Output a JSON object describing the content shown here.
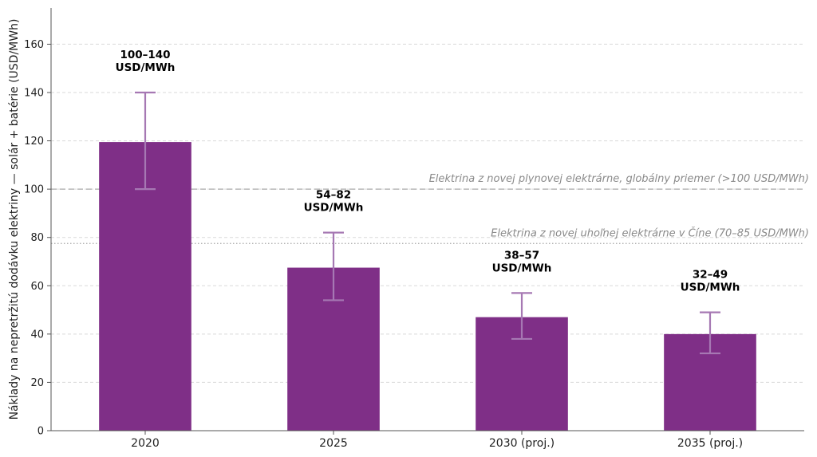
{
  "chart_data": {
    "type": "bar",
    "title": "",
    "xlabel": "",
    "ylabel": "Náklady na nepretržitú dodávku elektriny — solár + batérie (USD/MWh)",
    "ylim": [
      0,
      175
    ],
    "yticks": [
      0,
      20,
      40,
      60,
      80,
      100,
      120,
      140,
      160
    ],
    "grid": "horizontal dashed",
    "categories": [
      "2020",
      "2025",
      "2030 (proj.)",
      "2035 (proj.)"
    ],
    "values": [
      119.5,
      67.5,
      47,
      40
    ],
    "error_low": [
      100,
      54,
      38,
      32
    ],
    "error_high": [
      140,
      82,
      57,
      49
    ],
    "bar_labels": [
      [
        "100–140",
        "USD/MWh"
      ],
      [
        "54–82",
        "USD/MWh"
      ],
      [
        "38–57",
        "USD/MWh"
      ],
      [
        "32–49",
        "USD/MWh"
      ]
    ],
    "reference_lines": [
      {
        "value": 100,
        "style": "dashed",
        "label": "Elektrina z novej plynovej elektrárne, globálny priemer (>100 USD/MWh)"
      },
      {
        "value": 77.5,
        "style": "dotted",
        "label": "Elektrina z novej uhoľnej elektrárne v Číne (70–85 USD/MWh)"
      }
    ],
    "colors": {
      "bar": "#7f2f87",
      "errorbar": "#a678b3",
      "grid": "#d9d9d9",
      "refline": "#a8a8a8",
      "axis": "#555555"
    }
  }
}
